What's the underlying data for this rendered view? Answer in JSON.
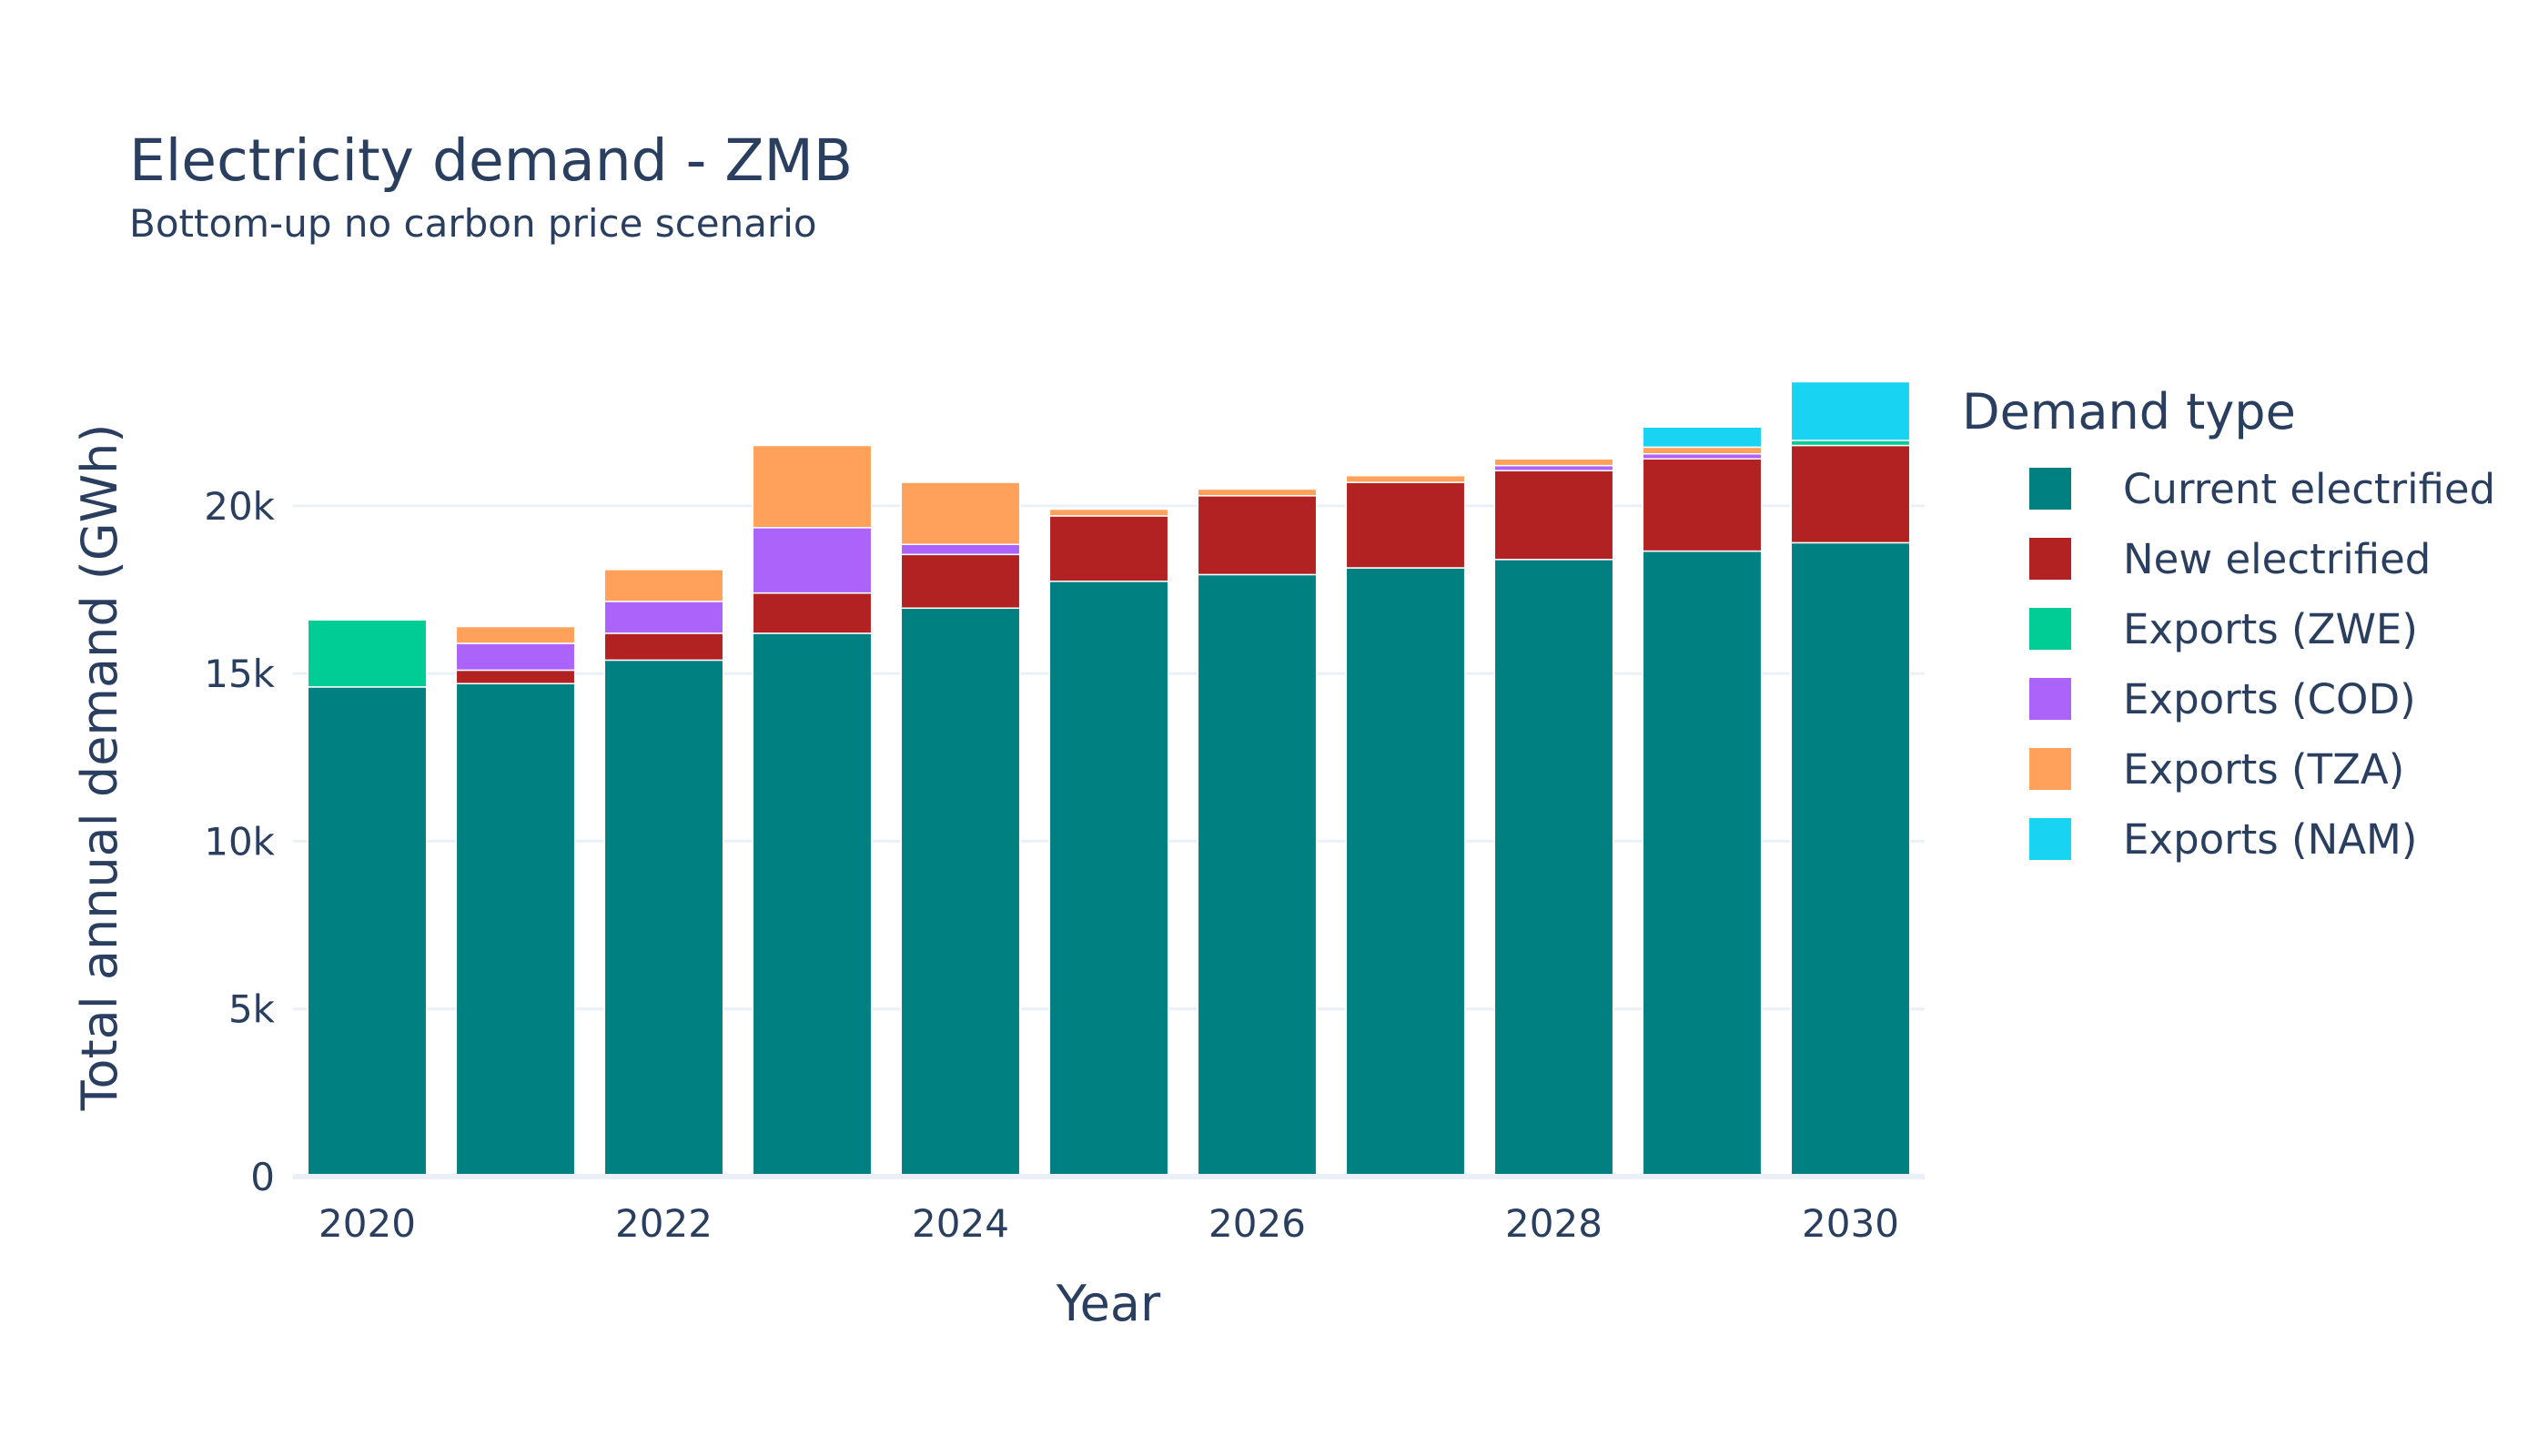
{
  "chart_data": {
    "type": "bar",
    "barmode": "stack",
    "title": "Electricity demand - ZMB",
    "subtitle": "Bottom-up no carbon price scenario",
    "xlabel": "Year",
    "ylabel": "Total annual demand (GWh)",
    "x": [
      2020,
      2021,
      2022,
      2023,
      2024,
      2025,
      2026,
      2027,
      2028,
      2029,
      2030
    ],
    "x_ticks": [
      {
        "value": 2020,
        "label": "2020"
      },
      {
        "value": 2022,
        "label": "2022"
      },
      {
        "value": 2024,
        "label": "2024"
      },
      {
        "value": 2026,
        "label": "2026"
      },
      {
        "value": 2028,
        "label": "2028"
      },
      {
        "value": 2030,
        "label": "2030"
      }
    ],
    "y_ticks": [
      {
        "value": 0,
        "label": "0"
      },
      {
        "value": 5000,
        "label": "5k"
      },
      {
        "value": 10000,
        "label": "10k"
      },
      {
        "value": 15000,
        "label": "15k"
      },
      {
        "value": 20000,
        "label": "20k"
      }
    ],
    "ylim": [
      0,
      24500
    ],
    "grid": true,
    "legend_title": "Demand type",
    "legend_position": "right",
    "series": [
      {
        "name": "Current electrified",
        "color": "#008080",
        "values": [
          14600,
          14700,
          15400,
          16200,
          16950,
          17750,
          17950,
          18150,
          18400,
          18650,
          18900
        ]
      },
      {
        "name": "New electrified",
        "color": "#b22222",
        "values": [
          0,
          400,
          800,
          1200,
          1600,
          1950,
          2350,
          2550,
          2650,
          2750,
          2900
        ]
      },
      {
        "name": "Exports (ZWE)",
        "color": "#00cc96",
        "values": [
          2000,
          0,
          0,
          0,
          0,
          0,
          0,
          0,
          0,
          0,
          150
        ]
      },
      {
        "name": "Exports (COD)",
        "color": "#ab63fa",
        "values": [
          0,
          800,
          950,
          1950,
          300,
          0,
          0,
          0,
          150,
          150,
          0
        ]
      },
      {
        "name": "Exports (TZA)",
        "color": "#ffa15a",
        "values": [
          0,
          500,
          950,
          2450,
          1850,
          200,
          200,
          200,
          200,
          200,
          0
        ]
      },
      {
        "name": "Exports (NAM)",
        "color": "#19d3f3",
        "values": [
          0,
          0,
          0,
          0,
          0,
          0,
          0,
          0,
          0,
          600,
          1750
        ]
      }
    ]
  }
}
